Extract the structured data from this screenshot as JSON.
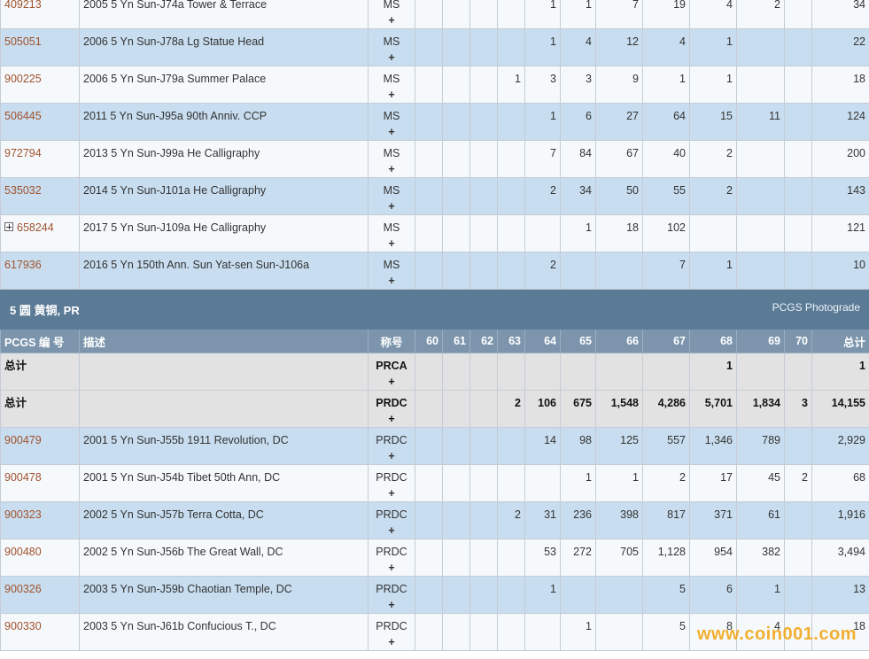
{
  "rows_top": [
    {
      "pcgs": "409213",
      "desc": "2005 5 Yn Sun-J74a Tower & Terrace",
      "cls": "MS",
      "plus": "+",
      "g": [
        "",
        "",
        "",
        "",
        "1",
        "1",
        "7",
        "19",
        "4",
        "2",
        ""
      ],
      "total": "34",
      "expand": false
    },
    {
      "pcgs": "505051",
      "desc": "2006 5 Yn Sun-J78a Lg Statue Head",
      "cls": "MS",
      "plus": "+",
      "g": [
        "",
        "",
        "",
        "",
        "1",
        "4",
        "12",
        "4",
        "1",
        "",
        ""
      ],
      "total": "22",
      "expand": false
    },
    {
      "pcgs": "900225",
      "desc": "2006 5 Yn Sun-J79a Summer Palace",
      "cls": "MS",
      "plus": "+",
      "g": [
        "",
        "",
        "",
        "1",
        "3",
        "3",
        "9",
        "1",
        "1",
        "",
        ""
      ],
      "total": "18",
      "expand": false
    },
    {
      "pcgs": "506445",
      "desc": "2011 5 Yn Sun-J95a 90th Anniv. CCP",
      "cls": "MS",
      "plus": "+",
      "g": [
        "",
        "",
        "",
        "",
        "1",
        "6",
        "27",
        "64",
        "15",
        "11",
        ""
      ],
      "total": "124",
      "expand": false
    },
    {
      "pcgs": "972794",
      "desc": "2013 5 Yn Sun-J99a He Calligraphy",
      "cls": "MS",
      "plus": "+",
      "g": [
        "",
        "",
        "",
        "",
        "7",
        "84",
        "67",
        "40",
        "2",
        "",
        ""
      ],
      "total": "200",
      "expand": false
    },
    {
      "pcgs": "535032",
      "desc": "2014 5 Yn Sun-J101a He Calligraphy",
      "cls": "MS",
      "plus": "+",
      "g": [
        "",
        "",
        "",
        "",
        "2",
        "34",
        "50",
        "55",
        "2",
        "",
        ""
      ],
      "total": "143",
      "expand": false
    },
    {
      "pcgs": "658244",
      "desc": "2017 5 Yn Sun-J109a He Calligraphy",
      "cls": "MS",
      "plus": "+",
      "g": [
        "",
        "",
        "",
        "",
        "",
        "1",
        "18",
        "102",
        "",
        "",
        ""
      ],
      "total": "121",
      "expand": true
    },
    {
      "pcgs": "617936",
      "desc": "2016 5 Yn 150th Ann. Sun Yat-sen Sun-J106a",
      "cls": "MS",
      "plus": "+",
      "g": [
        "",
        "",
        "",
        "",
        "2",
        "",
        "",
        "7",
        "1",
        "",
        ""
      ],
      "total": "10",
      "expand": false
    }
  ],
  "section": {
    "title": "5 圆 黄铜, PR",
    "link": "PCGS Photograde"
  },
  "headers": {
    "pcgs": "PCGS 编 号",
    "desc": "描述",
    "cls": "称号",
    "grades": [
      "60",
      "61",
      "62",
      "63",
      "64",
      "65",
      "66",
      "67",
      "68",
      "69",
      "70"
    ],
    "total": "总计"
  },
  "totals": [
    {
      "pcgs": "总计",
      "desc": "",
      "cls": "PRCA",
      "plus": "+",
      "g": [
        "",
        "",
        "",
        "",
        "",
        "",
        "",
        "",
        "1",
        "",
        ""
      ],
      "total": "1"
    },
    {
      "pcgs": "总计",
      "desc": "",
      "cls": "PRDC",
      "plus": "+",
      "g": [
        "",
        "",
        "",
        "2",
        "106",
        "675",
        "1,548",
        "4,286",
        "5,701",
        "1,834",
        "3"
      ],
      "total": "14,155"
    }
  ],
  "rows_bottom": [
    {
      "pcgs": "900479",
      "desc": "2001 5 Yn Sun-J55b 1911 Revolution, DC",
      "cls": "PRDC",
      "plus": "+",
      "g": [
        "",
        "",
        "",
        "",
        "14",
        "98",
        "125",
        "557",
        "1,346",
        "789",
        ""
      ],
      "total": "2,929",
      "expand": false
    },
    {
      "pcgs": "900478",
      "desc": "2001 5 Yn Sun-J54b Tibet 50th Ann, DC",
      "cls": "PRDC",
      "plus": "+",
      "g": [
        "",
        "",
        "",
        "",
        "",
        "1",
        "1",
        "2",
        "17",
        "45",
        "2"
      ],
      "total": "68",
      "expand": false
    },
    {
      "pcgs": "900323",
      "desc": "2002 5 Yn Sun-J57b Terra Cotta, DC",
      "cls": "PRDC",
      "plus": "+",
      "g": [
        "",
        "",
        "",
        "2",
        "31",
        "236",
        "398",
        "817",
        "371",
        "61",
        ""
      ],
      "total": "1,916",
      "expand": false
    },
    {
      "pcgs": "900480",
      "desc": "2002 5 Yn Sun-J56b The Great Wall, DC",
      "cls": "PRDC",
      "plus": "+",
      "g": [
        "",
        "",
        "",
        "",
        "53",
        "272",
        "705",
        "1,128",
        "954",
        "382",
        ""
      ],
      "total": "3,494",
      "expand": false
    },
    {
      "pcgs": "900326",
      "desc": "2003 5 Yn Sun-J59b Chaotian Temple, DC",
      "cls": "PRDC",
      "plus": "+",
      "g": [
        "",
        "",
        "",
        "",
        "1",
        "",
        "",
        "5",
        "6",
        "1",
        ""
      ],
      "total": "13",
      "expand": false
    },
    {
      "pcgs": "900330",
      "desc": "2003 5 Yn Sun-J61b Confucious T., DC",
      "cls": "PRDC",
      "plus": "+",
      "g": [
        "",
        "",
        "",
        "",
        "",
        "1",
        "",
        "5",
        "8",
        "4",
        ""
      ],
      "total": "18",
      "expand": false
    }
  ],
  "watermark": "www.coin001.com"
}
